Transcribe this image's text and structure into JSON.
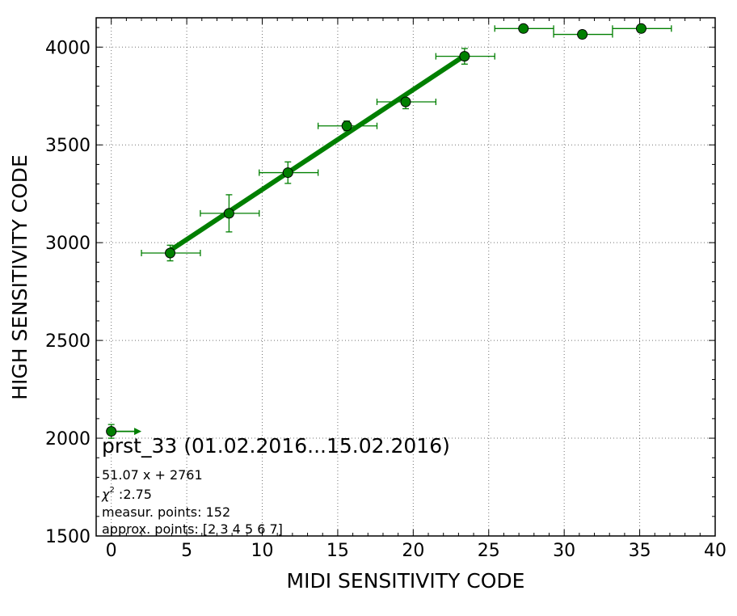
{
  "chart_data": {
    "type": "scatter",
    "xlabel": "MIDI SENSITIVITY CODE",
    "ylabel": "HIGH SENSITIVITY CODE",
    "xlim": [
      -1,
      40
    ],
    "ylim": [
      1500,
      4150
    ],
    "xticks": [
      0,
      5,
      10,
      15,
      20,
      25,
      30,
      35,
      40
    ],
    "yticks": [
      1500,
      2000,
      2500,
      3000,
      3500,
      4000
    ],
    "grid": true,
    "colors": {
      "marker": "#007f00",
      "fit": "#007f00",
      "errorbar": "#007f00"
    },
    "points": [
      {
        "x": 0,
        "y": 2035,
        "xerr_low": 0,
        "xerr_high": 2,
        "yerr": 35
      },
      {
        "x": 3.9,
        "y": 2947,
        "xerr_low": 1.9,
        "xerr_high": 2.0,
        "yerr": 40
      },
      {
        "x": 7.8,
        "y": 3150,
        "xerr_low": 1.9,
        "xerr_high": 2.0,
        "yerr": 95
      },
      {
        "x": 11.7,
        "y": 3358,
        "xerr_low": 1.9,
        "xerr_high": 2.0,
        "yerr": 55
      },
      {
        "x": 15.6,
        "y": 3597,
        "xerr_low": 1.9,
        "xerr_high": 2.0,
        "yerr": 25
      },
      {
        "x": 19.5,
        "y": 3720,
        "xerr_low": 1.9,
        "xerr_high": 2.0,
        "yerr": 35
      },
      {
        "x": 23.4,
        "y": 3953,
        "xerr_low": 1.9,
        "xerr_high": 2.0,
        "yerr": 40
      },
      {
        "x": 27.3,
        "y": 4095,
        "xerr_low": 1.9,
        "xerr_high": 2.0,
        "yerr": 0
      },
      {
        "x": 31.2,
        "y": 4065,
        "xerr_low": 1.9,
        "xerr_high": 2.0,
        "yerr": 20
      },
      {
        "x": 35.1,
        "y": 4095,
        "xerr_low": 1.9,
        "xerr_high": 2.0,
        "yerr": 0
      }
    ],
    "fit": {
      "slope": 51.07,
      "intercept": 2761,
      "x_from": 3.9,
      "x_to": 23.4
    },
    "annotations": {
      "title": "prst_33 (01.02.2016...15.02.2016)",
      "equation": "51.07 x + 2761",
      "chi2_symbol": "χ",
      "chi2_sup": "2",
      "chi2_value": " :2.75",
      "measured": "measur. points: 152",
      "approx": "approx. points: [2 3 4 5 6 7]"
    }
  }
}
